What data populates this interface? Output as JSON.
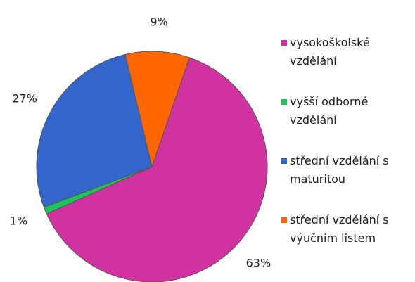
{
  "chart_data": {
    "type": "pie",
    "categories": [
      "vysokoškolské vzdělání",
      "vyšší odborné vzdělání",
      "střední vzdělání s maturitou",
      "střední vzdělání s výučním listem"
    ],
    "values": [
      63,
      1,
      27,
      9
    ],
    "value_labels": [
      "63%",
      "1%",
      "27%",
      "9%"
    ],
    "colors": [
      "#d033a0",
      "#1cc45a",
      "#3366cc",
      "#ff6600"
    ],
    "legend": "right"
  }
}
